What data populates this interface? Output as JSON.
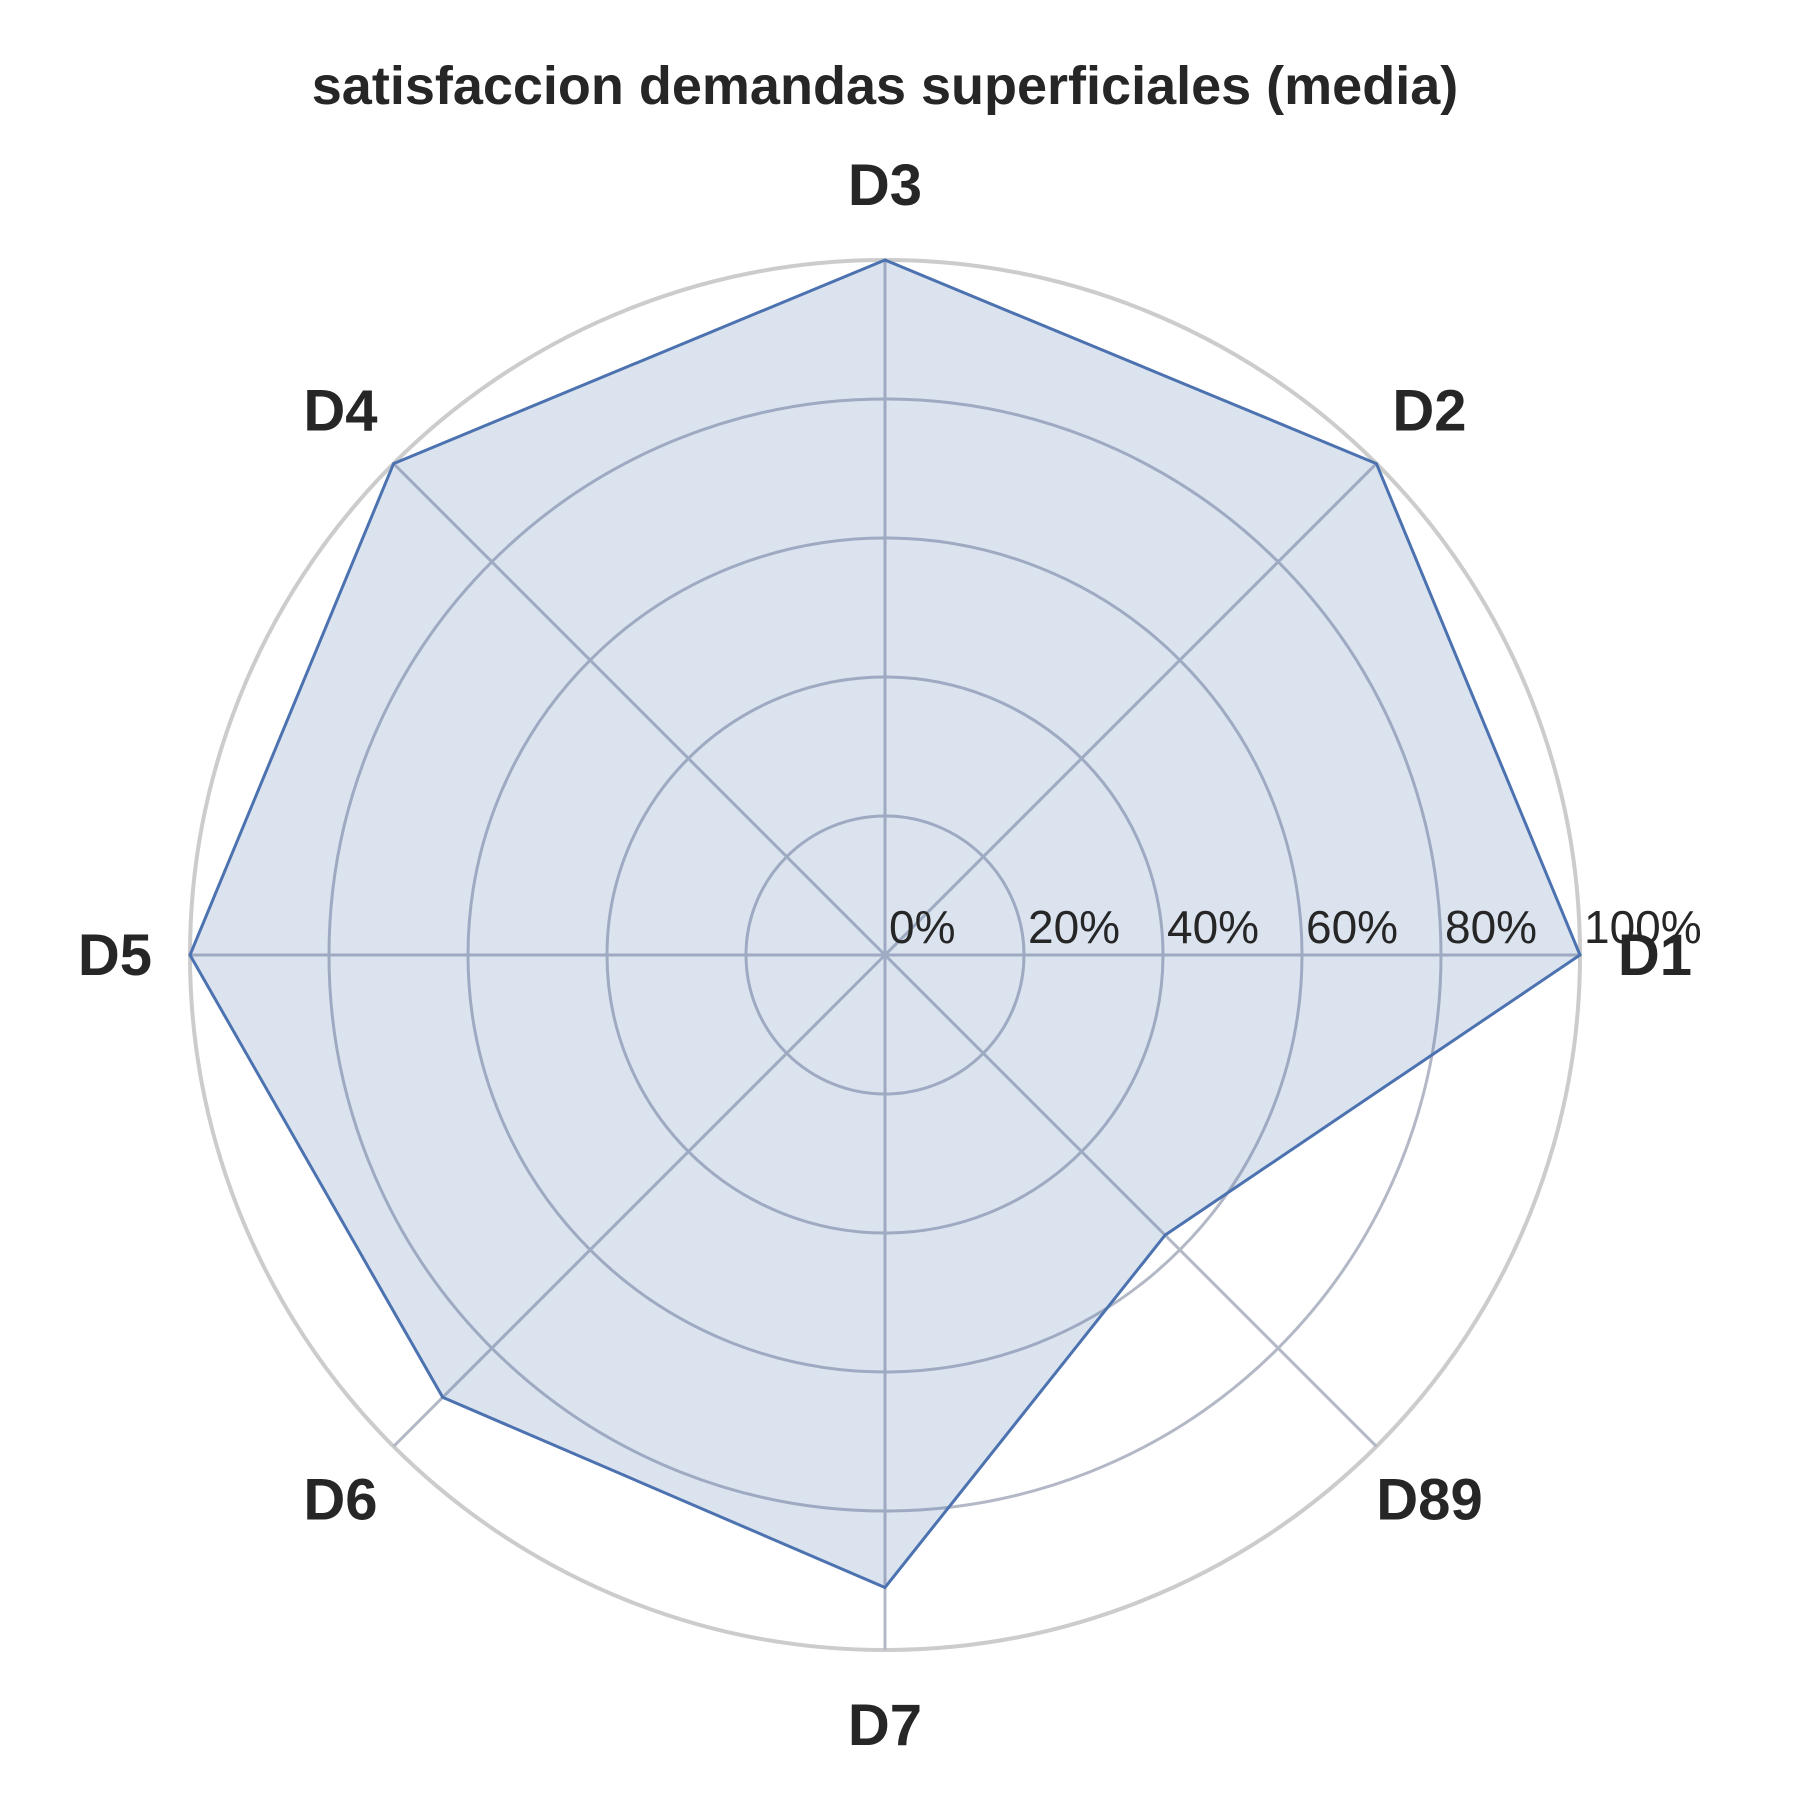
{
  "chart_data": {
    "type": "radar",
    "title": "satisfaccion demandas superficiales (media)",
    "categories": [
      "D1",
      "D2",
      "D3",
      "D4",
      "D5",
      "D6",
      "D7",
      "D89"
    ],
    "series": [
      {
        "values": [
          100,
          100,
          100,
          100,
          100,
          90,
          91,
          57
        ]
      }
    ],
    "rlim": [
      0,
      100
    ],
    "r_ticks": [
      0,
      20,
      40,
      60,
      80,
      100
    ],
    "r_tick_labels": [
      "0%",
      "20%",
      "40%",
      "60%",
      "80%",
      "100%"
    ],
    "grid": true,
    "colors": {
      "series": "#4c72b0",
      "grid": "#b3b8c6",
      "outer": "#cccccc",
      "text": "#262626"
    }
  }
}
